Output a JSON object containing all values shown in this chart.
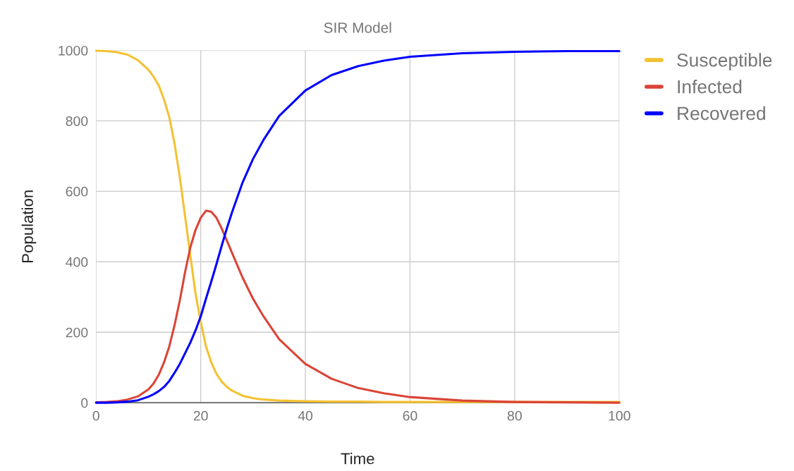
{
  "chart_data": {
    "type": "line",
    "title": "SIR Model",
    "xlabel": "Time",
    "ylabel": "Population",
    "x": [
      0,
      2,
      4,
      6,
      8,
      10,
      11,
      12,
      13,
      14,
      15,
      16,
      17,
      18,
      19,
      20,
      21,
      22,
      23,
      24,
      25,
      26,
      28,
      30,
      32,
      35,
      40,
      45,
      50,
      55,
      60,
      70,
      80,
      90,
      100
    ],
    "series": [
      {
        "name": "Susceptible",
        "color": "#f4c132",
        "values": [
          999,
          998,
          995,
          988,
          972,
          945,
          925,
          900,
          860,
          810,
          735,
          640,
          530,
          420,
          310,
          230,
          160,
          115,
          82,
          60,
          45,
          34,
          20,
          13,
          9,
          6,
          4,
          3,
          3,
          2,
          2,
          2,
          2,
          2,
          2
        ]
      },
      {
        "name": "Infected",
        "color": "#db4437",
        "values": [
          1,
          2,
          4,
          9,
          18,
          38,
          55,
          80,
          115,
          160,
          220,
          290,
          370,
          440,
          490,
          525,
          545,
          542,
          525,
          495,
          460,
          425,
          355,
          295,
          245,
          180,
          110,
          68,
          42,
          27,
          16,
          6,
          2,
          1,
          0
        ]
      },
      {
        "name": "Recovered",
        "color": "#0000ff",
        "values": [
          0,
          0,
          1,
          3,
          7,
          17,
          24,
          33,
          45,
          62,
          85,
          110,
          140,
          170,
          205,
          245,
          295,
          343,
          393,
          445,
          495,
          541,
          625,
          692,
          746,
          814,
          886,
          930,
          955,
          971,
          982,
          992,
          996,
          998,
          998
        ]
      }
    ],
    "xlim": [
      0,
      100
    ],
    "xticks": [
      0,
      20,
      40,
      60,
      80,
      100
    ],
    "ylim": [
      0,
      1000
    ],
    "yticks": [
      0,
      200,
      400,
      600,
      800,
      1000
    ],
    "grid": true,
    "legend": "top right",
    "marker": "none",
    "line_style": "solid"
  }
}
